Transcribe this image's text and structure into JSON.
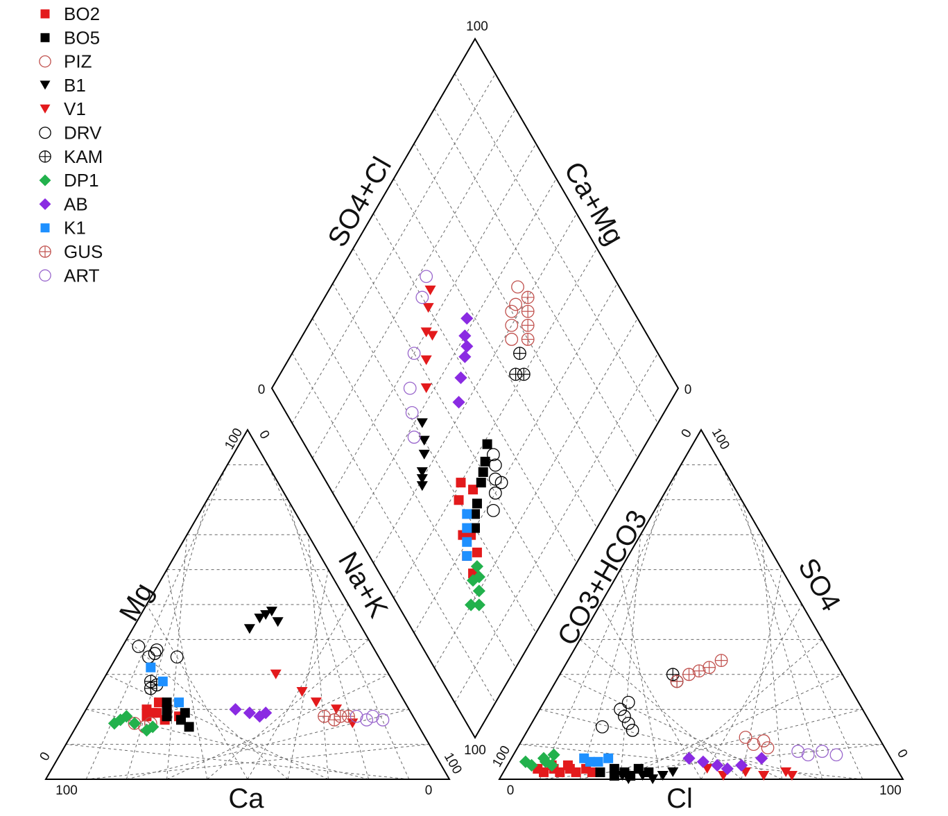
{
  "chart_data": {
    "type": "scatter",
    "subtype": "piper-diagram",
    "legend_position": "top-left",
    "grid": true,
    "legend": [
      {
        "name": "BO2",
        "symbol": "square-filled",
        "color": "#e31a1c"
      },
      {
        "name": "BO5",
        "symbol": "square-filled",
        "color": "#000000"
      },
      {
        "name": "PIZ",
        "symbol": "circle-open",
        "color": "#c0504d"
      },
      {
        "name": "B1",
        "symbol": "triangle-down-filled",
        "color": "#000000"
      },
      {
        "name": "V1",
        "symbol": "triangle-down-filled",
        "color": "#e31a1c"
      },
      {
        "name": "DRV",
        "symbol": "circle-open",
        "color": "#000000"
      },
      {
        "name": "KAM",
        "symbol": "circle-cross",
        "color": "#000000"
      },
      {
        "name": "DP1",
        "symbol": "diamond-filled",
        "color": "#22b14c"
      },
      {
        "name": "AB",
        "symbol": "diamond-filled",
        "color": "#8a2be2"
      },
      {
        "name": "K1",
        "symbol": "square-filled",
        "color": "#1e90ff"
      },
      {
        "name": "GUS",
        "symbol": "circle-cross",
        "color": "#c0504d"
      },
      {
        "name": "ART",
        "symbol": "circle-open",
        "color": "#9966cc"
      }
    ],
    "axis_labels": {
      "cation_left": "Mg",
      "cation_right": "Na+K",
      "cation_bottom": "Ca",
      "anion_left": "CO3+HCO3",
      "anion_right": "SO4",
      "anion_bottom": "Cl",
      "diamond_left": "SO4+Cl",
      "diamond_right": "Ca+Mg"
    },
    "tick_labels": {
      "cation_bottom_left": "100",
      "cation_bottom_right": "0",
      "cation_left_bottom": "0",
      "cation_left_top": "100",
      "cation_right_top": "0",
      "cation_right_bottom": "100",
      "anion_bottom_left": "0",
      "anion_bottom_right": "100",
      "anion_left_bottom": "100",
      "anion_left_top": "0",
      "anion_right_top": "100",
      "anion_right_bottom": "0",
      "diamond_top": "100",
      "diamond_left": "0",
      "diamond_right": "0",
      "diamond_bottom": "100"
    },
    "axis_range": [
      0,
      100
    ],
    "units": "%",
    "series": [
      {
        "name": "BO2",
        "cation": [
          [
            66,
            18
          ],
          [
            63,
            19
          ],
          [
            60,
            20
          ],
          [
            62,
            17
          ],
          [
            58,
            18
          ],
          [
            65,
            20
          ],
          [
            64,
            19
          ],
          [
            61,
            22
          ]
        ],
        "anion": [
          [
            8,
            3
          ],
          [
            10,
            2
          ],
          [
            12,
            3
          ],
          [
            14,
            2
          ],
          [
            16,
            3
          ],
          [
            18,
            2
          ],
          [
            20,
            3
          ],
          [
            22,
            2
          ],
          [
            11,
            4
          ],
          [
            15,
            4
          ]
        ],
        "diamond": [
          [
            24,
            23
          ],
          [
            28,
            24
          ],
          [
            32,
            26
          ],
          [
            38,
            30
          ],
          [
            40,
            33
          ],
          [
            36,
            35
          ],
          [
            30,
            28
          ],
          [
            26,
            27
          ]
        ]
      },
      {
        "name": "BO5",
        "cation": [
          [
            58,
            17
          ],
          [
            56,
            19
          ],
          [
            60,
            20
          ],
          [
            57,
            15
          ],
          [
            59,
            22
          ],
          [
            61,
            18
          ]
        ],
        "anion": [
          [
            24,
            2
          ],
          [
            27,
            3
          ],
          [
            30,
            2
          ],
          [
            33,
            3
          ],
          [
            36,
            2
          ],
          [
            28,
            1
          ],
          [
            32,
            1
          ]
        ],
        "diamond": [
          [
            30,
            30
          ],
          [
            33,
            34
          ],
          [
            35,
            38
          ],
          [
            37,
            42
          ],
          [
            39,
            45
          ],
          [
            36,
            40
          ],
          [
            32,
            32
          ]
        ]
      },
      {
        "name": "PIZ",
        "cation": [
          [
            70,
            16
          ],
          [
            68,
            15
          ],
          [
            66,
            16
          ]
        ],
        "anion": [
          [
            55,
            12
          ],
          [
            58,
            10
          ],
          [
            60,
            11
          ],
          [
            62,
            9
          ]
        ],
        "diamond": [
          [
            50,
            68
          ],
          [
            52,
            70
          ],
          [
            54,
            75
          ],
          [
            52,
            72
          ],
          [
            48,
            66
          ]
        ]
      },
      {
        "name": "B1",
        "cation": [
          [
            28,
            43
          ],
          [
            24,
            46
          ],
          [
            22,
            47
          ],
          [
            20,
            48
          ],
          [
            20,
            45
          ]
        ],
        "anion": [
          [
            30,
            1
          ],
          [
            32,
            0
          ],
          [
            35,
            1
          ],
          [
            38,
            0
          ],
          [
            40,
            1
          ],
          [
            42,
            2
          ]
        ],
        "diamond": [
          [
            49,
            23
          ],
          [
            50,
            24
          ],
          [
            51,
            25
          ],
          [
            53,
            28
          ],
          [
            55,
            30
          ],
          [
            58,
            32
          ]
        ]
      },
      {
        "name": "V1",
        "cation": [
          [
            28,
            30
          ],
          [
            24,
            25
          ],
          [
            22,
            22
          ],
          [
            18,
            20
          ],
          [
            16,
            16
          ]
        ],
        "anion": [
          [
            50,
            3
          ],
          [
            55,
            1
          ],
          [
            60,
            2
          ],
          [
            65,
            1
          ],
          [
            70,
            2
          ],
          [
            72,
            1
          ]
        ],
        "diamond": [
          [
            62,
            38
          ],
          [
            66,
            42
          ],
          [
            70,
            46
          ],
          [
            73,
            50
          ],
          [
            75,
            53
          ],
          [
            68,
            47
          ]
        ]
      },
      {
        "name": "DRV",
        "cation": [
          [
            58,
            38
          ],
          [
            57,
            35
          ],
          [
            55,
            36
          ],
          [
            54,
            37
          ],
          [
            50,
            35
          ]
        ],
        "anion": [
          [
            20,
            20
          ],
          [
            22,
            18
          ],
          [
            24,
            16
          ],
          [
            26,
            14
          ],
          [
            21,
            22
          ],
          [
            18,
            15
          ]
        ],
        "diamond": [
          [
            28,
            37
          ],
          [
            30,
            40
          ],
          [
            32,
            42
          ],
          [
            34,
            44
          ],
          [
            36,
            45
          ],
          [
            30,
            43
          ]
        ]
      },
      {
        "name": "KAM",
        "cation": [
          [
            60,
            28
          ],
          [
            61,
            26
          ],
          [
            59,
            27
          ]
        ],
        "anion": [
          [
            28,
            30
          ],
          [
            30,
            28
          ]
        ],
        "diamond": [
          [
            40,
            64
          ],
          [
            42,
            62
          ],
          [
            44,
            66
          ]
        ]
      },
      {
        "name": "DP1",
        "cation": [
          [
            75,
            16
          ],
          [
            73,
            17
          ],
          [
            71,
            18
          ],
          [
            70,
            16
          ],
          [
            68,
            14
          ],
          [
            66,
            15
          ]
        ],
        "anion": [
          [
            4,
            5
          ],
          [
            6,
            4
          ],
          [
            8,
            6
          ],
          [
            9,
            5
          ],
          [
            10,
            7
          ],
          [
            11,
            4
          ]
        ],
        "diamond": [
          [
            18,
            20
          ],
          [
            20,
            22
          ],
          [
            22,
            24
          ],
          [
            24,
            25
          ],
          [
            20,
            18
          ],
          [
            23,
            22
          ]
        ]
      },
      {
        "name": "AB",
        "cation": [
          [
            43,
            20
          ],
          [
            40,
            19
          ],
          [
            38,
            18
          ],
          [
            36,
            19
          ]
        ],
        "anion": [
          [
            44,
            6
          ],
          [
            48,
            5
          ],
          [
            52,
            4
          ],
          [
            55,
            3
          ],
          [
            58,
            4
          ],
          [
            62,
            6
          ]
        ],
        "diamond": [
          [
            52,
            44
          ],
          [
            55,
            48
          ],
          [
            57,
            52
          ],
          [
            60,
            55
          ],
          [
            62,
            58
          ],
          [
            58,
            54
          ]
        ]
      },
      {
        "name": "K1",
        "cation": [
          [
            58,
            32
          ],
          [
            57,
            28
          ],
          [
            56,
            22
          ]
        ],
        "anion": [
          [
            18,
            6
          ],
          [
            20,
            5
          ],
          [
            22,
            5
          ],
          [
            24,
            6
          ]
        ],
        "diamond": [
          [
            28,
            24
          ],
          [
            30,
            26
          ],
          [
            32,
            28
          ],
          [
            34,
            30
          ]
        ]
      },
      {
        "name": "GUS",
        "cation": [
          [
            20,
            17
          ],
          [
            18,
            18
          ],
          [
            16,
            18
          ],
          [
            22,
            18
          ]
        ],
        "anion": [
          [
            30,
            28
          ],
          [
            32,
            30
          ],
          [
            34,
            31
          ],
          [
            36,
            32
          ],
          [
            38,
            34
          ]
        ],
        "diamond": [
          [
            44,
            70
          ],
          [
            46,
            72
          ],
          [
            48,
            74
          ],
          [
            50,
            76
          ]
        ]
      },
      {
        "name": "ART",
        "cation": [
          [
            14,
            18
          ],
          [
            12,
            17
          ],
          [
            10,
            18
          ],
          [
            8,
            17
          ]
        ],
        "anion": [
          [
            70,
            8
          ],
          [
            73,
            7
          ],
          [
            76,
            8
          ],
          [
            80,
            7
          ]
        ],
        "diamond": [
          [
            58,
            28
          ],
          [
            62,
            31
          ],
          [
            66,
            34
          ],
          [
            70,
            40
          ],
          [
            76,
            50
          ],
          [
            78,
            54
          ]
        ]
      }
    ]
  }
}
